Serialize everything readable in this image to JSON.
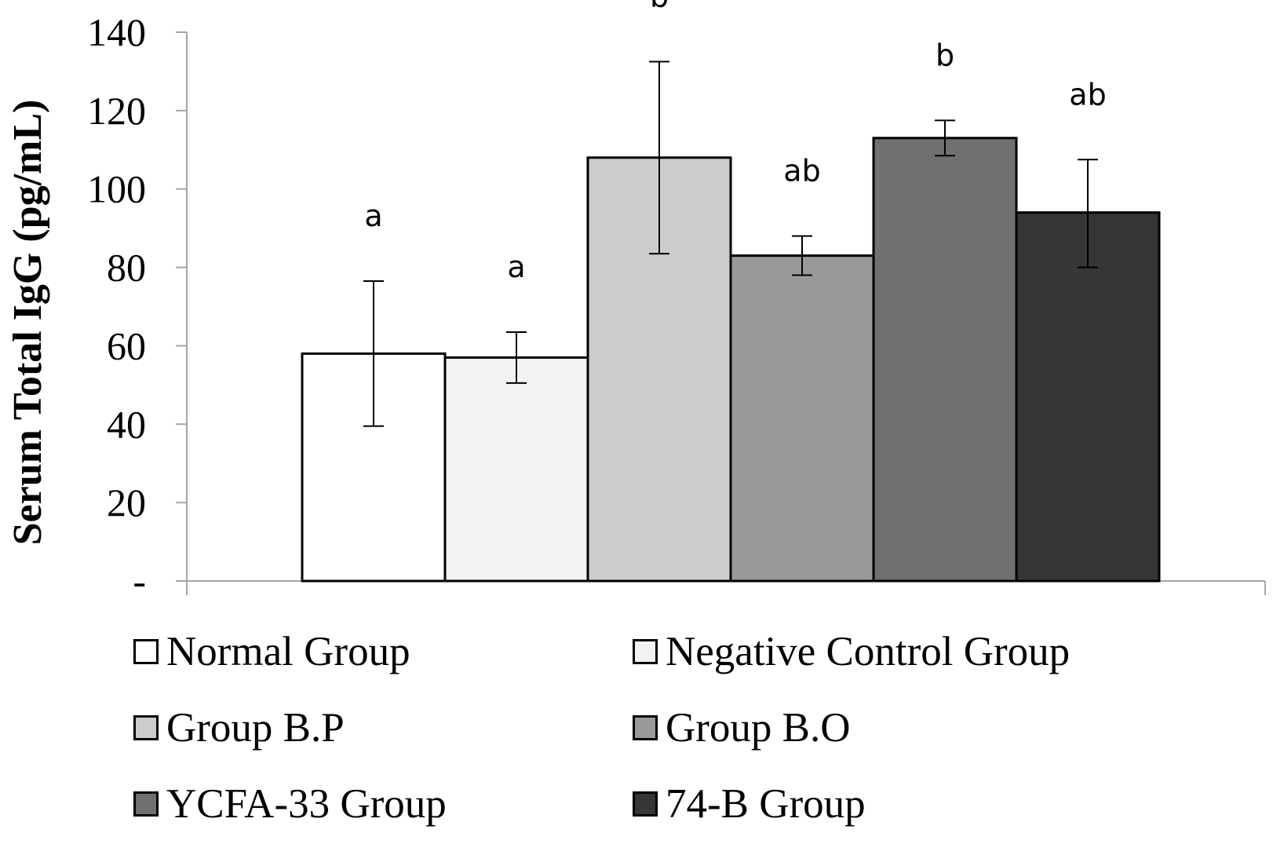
{
  "chart_data": {
    "type": "bar",
    "title": "",
    "xlabel": "",
    "ylabel": "Serum Total IgG (pg/mL)",
    "ylim": [
      0,
      140
    ],
    "yticks": [
      {
        "value": 0,
        "label": "-"
      },
      {
        "value": 20,
        "label": "20"
      },
      {
        "value": 40,
        "label": "40"
      },
      {
        "value": 60,
        "label": "60"
      },
      {
        "value": 80,
        "label": "80"
      },
      {
        "value": 100,
        "label": "100"
      },
      {
        "value": 120,
        "label": "120"
      },
      {
        "value": 140,
        "label": "140"
      }
    ],
    "grid": false,
    "legend_position": "bottom",
    "series": [
      {
        "name": "Normal Group",
        "value": 58,
        "error_low": 39.5,
        "error_high": 76.5,
        "significance": "a",
        "color": "#ffffff"
      },
      {
        "name": "Negative Control Group",
        "value": 57,
        "error_low": 50.5,
        "error_high": 63.5,
        "significance": "a",
        "color": "#f2f2f2"
      },
      {
        "name": "Group B.P",
        "value": 108,
        "error_low": 83.5,
        "error_high": 132.5,
        "significance": "b",
        "color": "#cccccc"
      },
      {
        "name": "Group B.O",
        "value": 83,
        "error_low": 78,
        "error_high": 88,
        "significance": "ab",
        "color": "#999999"
      },
      {
        "name": "YCFA-33 Group",
        "value": 113,
        "error_low": 108.5,
        "error_high": 117.5,
        "significance": "b",
        "color": "#707070"
      },
      {
        "name": "74-B Group",
        "value": 94,
        "error_low": 80,
        "error_high": 107.5,
        "significance": "ab",
        "color": "#363636"
      }
    ]
  }
}
